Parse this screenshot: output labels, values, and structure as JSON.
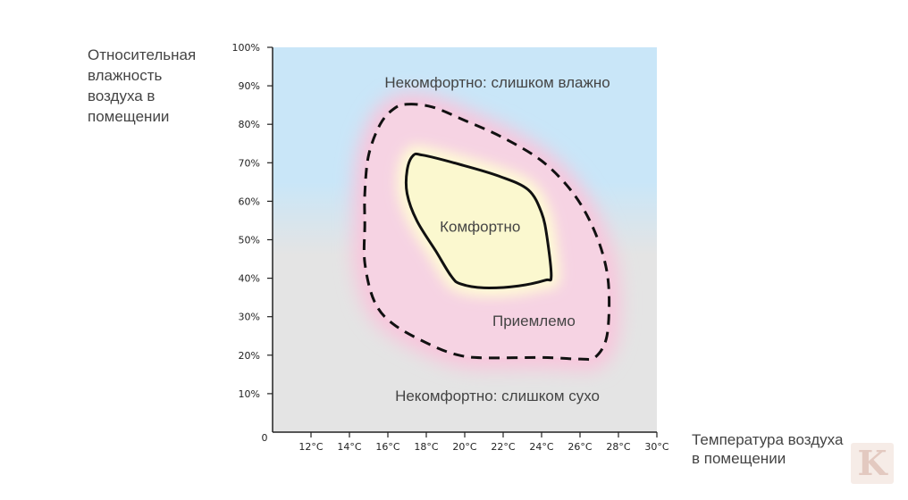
{
  "chart_data": {
    "type": "area",
    "title": "",
    "ylabel_lines": [
      "Относительная",
      "влажность",
      "воздуха в",
      "помещении"
    ],
    "xlabel_lines": [
      "Температура  воздуха",
      "в помещении"
    ],
    "origin_label": "0",
    "xlim": [
      10,
      30
    ],
    "ylim": [
      0,
      100
    ],
    "x_ticks": [
      {
        "value": 12,
        "label": "12°C"
      },
      {
        "value": 14,
        "label": "14°C"
      },
      {
        "value": 16,
        "label": "16°C"
      },
      {
        "value": 18,
        "label": "18°C"
      },
      {
        "value": 20,
        "label": "20°C"
      },
      {
        "value": 22,
        "label": "22°C"
      },
      {
        "value": 24,
        "label": "24°C"
      },
      {
        "value": 26,
        "label": "26°C"
      },
      {
        "value": 28,
        "label": "28°C"
      },
      {
        "value": 30,
        "label": "30°C"
      }
    ],
    "y_ticks": [
      {
        "value": 10,
        "label": "10%"
      },
      {
        "value": 20,
        "label": "20%"
      },
      {
        "value": 30,
        "label": "30%"
      },
      {
        "value": 40,
        "label": "40%"
      },
      {
        "value": 50,
        "label": "50%"
      },
      {
        "value": 60,
        "label": "60%"
      },
      {
        "value": 70,
        "label": "70%"
      },
      {
        "value": 80,
        "label": "80%"
      },
      {
        "value": 90,
        "label": "90%"
      },
      {
        "value": 100,
        "label": "100%"
      }
    ],
    "background_zones": {
      "humid_color": "#c9e6f8",
      "dry_color": "#e4e4e4",
      "transition_humidity": 53
    },
    "zones": [
      {
        "name": "Некомфортно: слишком влажно",
        "label_at": {
          "x": 21.7,
          "y": 91
        }
      },
      {
        "name": "Приемлемо",
        "fill": "#f6d3e3",
        "border": "dashed",
        "label_at": {
          "x": 23.6,
          "y": 29
        },
        "boundary": [
          {
            "x": 17.0,
            "y": 85.2
          },
          {
            "x": 18.3,
            "y": 84.5
          },
          {
            "x": 20.0,
            "y": 81.0
          },
          {
            "x": 22.0,
            "y": 76.5
          },
          {
            "x": 24.0,
            "y": 70.5
          },
          {
            "x": 25.5,
            "y": 63.0
          },
          {
            "x": 26.5,
            "y": 55.0
          },
          {
            "x": 27.2,
            "y": 46.0
          },
          {
            "x": 27.5,
            "y": 37.0
          },
          {
            "x": 27.4,
            "y": 25.0
          },
          {
            "x": 26.8,
            "y": 19.5
          },
          {
            "x": 26.0,
            "y": 19.0
          },
          {
            "x": 24.0,
            "y": 19.4
          },
          {
            "x": 21.0,
            "y": 19.3
          },
          {
            "x": 19.7,
            "y": 20.0
          },
          {
            "x": 18.3,
            "y": 22.5
          },
          {
            "x": 16.3,
            "y": 28.0
          },
          {
            "x": 15.3,
            "y": 34.0
          },
          {
            "x": 14.8,
            "y": 44.0
          },
          {
            "x": 14.8,
            "y": 54.0
          },
          {
            "x": 14.8,
            "y": 62.0
          },
          {
            "x": 15.0,
            "y": 72.0
          },
          {
            "x": 15.6,
            "y": 80.0
          },
          {
            "x": 16.3,
            "y": 84.0
          }
        ]
      },
      {
        "name": "Комфортно",
        "fill": "#fbf8cf",
        "border": "solid",
        "label_at": {
          "x": 20.8,
          "y": 53.5
        },
        "boundary": [
          {
            "x": 17.3,
            "y": 71.8
          },
          {
            "x": 17.8,
            "y": 72.0
          },
          {
            "x": 19.8,
            "y": 69.5
          },
          {
            "x": 21.8,
            "y": 66.5
          },
          {
            "x": 23.3,
            "y": 63.0
          },
          {
            "x": 24.0,
            "y": 57.0
          },
          {
            "x": 24.3,
            "y": 50.0
          },
          {
            "x": 24.5,
            "y": 40.5
          },
          {
            "x": 24.2,
            "y": 39.5
          },
          {
            "x": 22.8,
            "y": 38.0
          },
          {
            "x": 21.0,
            "y": 37.5
          },
          {
            "x": 19.8,
            "y": 38.5
          },
          {
            "x": 19.3,
            "y": 40.5
          },
          {
            "x": 18.5,
            "y": 47.0
          },
          {
            "x": 17.5,
            "y": 55.0
          },
          {
            "x": 17.0,
            "y": 62.0
          },
          {
            "x": 17.0,
            "y": 68.0
          }
        ]
      },
      {
        "name": "Некомфортно: слишком сухо",
        "label_at": {
          "x": 21.7,
          "y": 9.5
        }
      }
    ]
  },
  "colors": {
    "axis": "#222222",
    "outline": "#111111",
    "glow_acceptable": "#f8c6dc",
    "glow_comfort": "#fffbd5"
  },
  "watermark": {
    "text": "K"
  }
}
